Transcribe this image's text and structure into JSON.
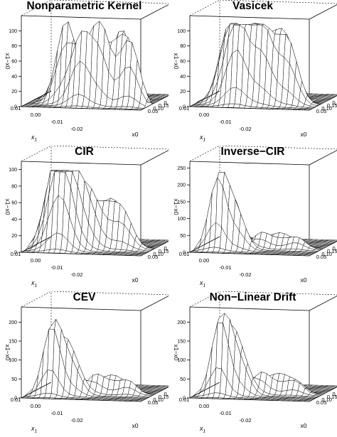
{
  "figure": {
    "panels": [
      {
        "title": "Nonparametric Kernel",
        "peaks_profile": "kernel"
      },
      {
        "title": "Vasicek",
        "peaks_profile": "vasicek"
      },
      {
        "title": "CIR",
        "peaks_profile": "cir"
      },
      {
        "title": "Inverse−CIR",
        "peaks_profile": "invcir"
      },
      {
        "title": "CEV",
        "peaks_profile": "cev"
      },
      {
        "title": "Non−Linear Drift",
        "peaks_profile": "nld"
      }
    ]
  },
  "chart_data": [
    {
      "type": "surface",
      "title": "Nonparametric Kernel",
      "zlabel": "x1−x0",
      "xlabel": "x0",
      "ylabel": "x1",
      "z_ticks": [
        "0",
        "20",
        "40",
        "60",
        "80",
        "100"
      ],
      "zlim": [
        0,
        120
      ],
      "x_ticks": [
        "0.05",
        "0.10",
        "0.15",
        "0.20",
        "0.25"
      ],
      "y_ticks": [
        "-0.02",
        "-0.01",
        "0.00",
        "0.01"
      ],
      "peak_height": 105
    },
    {
      "type": "surface",
      "title": "Vasicek",
      "zlabel": "x1−x0",
      "xlabel": "x0",
      "ylabel": "x1",
      "z_ticks": [
        "0",
        "20",
        "40",
        "60",
        "80",
        "100"
      ],
      "zlim": [
        0,
        120
      ],
      "x_ticks": [
        "0.05",
        "0.10",
        "0.15",
        "0.20",
        "0.25"
      ],
      "y_ticks": [
        "-0.02",
        "-0.01",
        "0.00",
        "0.01"
      ],
      "peak_height": 100
    },
    {
      "type": "surface",
      "title": "CIR",
      "zlabel": "x1−x0",
      "xlabel": "x0",
      "ylabel": "x1",
      "z_ticks": [
        "0",
        "20",
        "40",
        "60",
        "80",
        "100"
      ],
      "zlim": [
        0,
        110
      ],
      "x_ticks": [
        "0.05",
        "0.10",
        "0.15",
        "0.20",
        "0.25"
      ],
      "y_ticks": [
        "-0.02",
        "-0.01",
        "0.00",
        "0.01"
      ],
      "peak_height": 90
    },
    {
      "type": "surface",
      "title": "Inverse−CIR",
      "zlabel": "x1−x0",
      "xlabel": "x0",
      "ylabel": "x1",
      "z_ticks": [
        "0",
        "50",
        "100",
        "150",
        "200",
        "250"
      ],
      "zlim": [
        0,
        270
      ],
      "x_ticks": [
        "0.05",
        "0.10",
        "0.15",
        "0.20",
        "0.25"
      ],
      "y_ticks": [
        "-0.02",
        "-0.01",
        "0.00",
        "0.01"
      ],
      "peak_height": 220
    },
    {
      "type": "surface",
      "title": "CEV",
      "zlabel": "x1−x0",
      "xlabel": "x0",
      "ylabel": "x1",
      "z_ticks": [
        "0",
        "50",
        "100",
        "150",
        "200"
      ],
      "zlim": [
        0,
        240
      ],
      "x_ticks": [
        "0.05",
        "0.10",
        "0.15",
        "0.20",
        "0.25"
      ],
      "y_ticks": [
        "-0.02",
        "-0.01",
        "0.00",
        "0.01"
      ],
      "peak_height": 190
    },
    {
      "type": "surface",
      "title": "Non−Linear Drift",
      "zlabel": "x1−x0",
      "xlabel": "x0",
      "ylabel": "x1",
      "z_ticks": [
        "0",
        "50",
        "100",
        "150",
        "200"
      ],
      "zlim": [
        0,
        240
      ],
      "x_ticks": [
        "0.05",
        "0.10",
        "0.15",
        "0.20",
        "0.25"
      ],
      "y_ticks": [
        "-0.02",
        "-0.01",
        "0.00",
        "0.01"
      ],
      "peak_height": 205
    }
  ]
}
